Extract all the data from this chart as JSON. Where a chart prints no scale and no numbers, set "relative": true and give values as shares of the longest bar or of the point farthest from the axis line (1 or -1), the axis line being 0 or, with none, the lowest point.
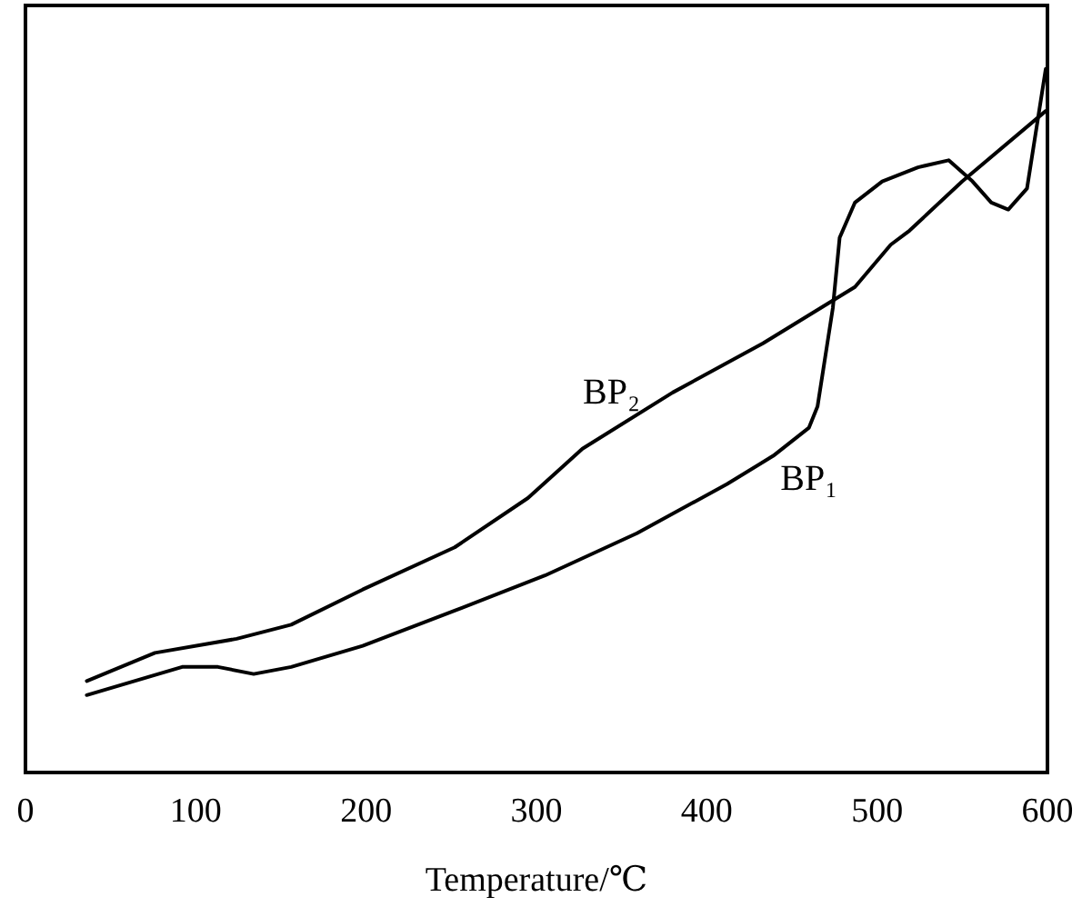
{
  "chart_data": {
    "type": "line",
    "relative": true,
    "xlabel": "Temperature/℃",
    "xlim": [
      0,
      600
    ],
    "xticks": [
      0,
      100,
      200,
      300,
      400,
      500,
      600
    ],
    "marker": "none",
    "line_style": "solid",
    "series": [
      {
        "name": "BP₁",
        "color": "#000000",
        "x": [
          36,
          92,
          113,
          134,
          156,
          198,
          252,
          305,
          359,
          412,
          439,
          460,
          465,
          474,
          478,
          487,
          503,
          524,
          542,
          556,
          567,
          577,
          588,
          599
        ],
        "values": [
          0.11,
          0.15,
          0.15,
          0.14,
          0.15,
          0.18,
          0.23,
          0.28,
          0.34,
          0.41,
          0.45,
          0.49,
          0.52,
          0.66,
          0.76,
          0.81,
          0.84,
          0.86,
          0.87,
          0.84,
          0.81,
          0.8,
          0.83,
          1.0
        ]
      },
      {
        "name": "BP₂",
        "color": "#000000",
        "x": [
          36,
          76,
          124,
          156,
          198,
          252,
          295,
          327,
          380,
          433,
          487,
          508,
          519,
          550,
          599
        ],
        "values": [
          0.13,
          0.17,
          0.19,
          0.21,
          0.26,
          0.32,
          0.39,
          0.46,
          0.54,
          0.61,
          0.69,
          0.75,
          0.77,
          0.84,
          0.94
        ]
      }
    ]
  }
}
